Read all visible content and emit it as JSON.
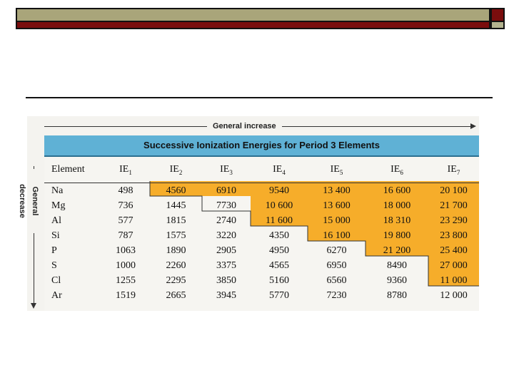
{
  "figure": {
    "general_increase": "General increase",
    "general_decrease": "General decrease",
    "table_title": "Successive Ionization Energies for Period 3 Elements",
    "columns": [
      "Element",
      "IE1",
      "IE2",
      "IE3",
      "IE4",
      "IE5",
      "IE6",
      "IE7"
    ],
    "rows": [
      {
        "element": "Na",
        "values": [
          "498",
          "4560",
          "6910",
          "9540",
          "13 400",
          "16 600",
          "20 100"
        ]
      },
      {
        "element": "Mg",
        "values": [
          "736",
          "1445",
          "7730",
          "10 600",
          "13 600",
          "18 000",
          "21 700"
        ]
      },
      {
        "element": "Al",
        "values": [
          "577",
          "1815",
          "2740",
          "11 600",
          "15 000",
          "18 310",
          "23 290"
        ]
      },
      {
        "element": "Si",
        "values": [
          "787",
          "1575",
          "3220",
          "4350",
          "16 100",
          "19 800",
          "23 800"
        ]
      },
      {
        "element": "P",
        "values": [
          "1063",
          "1890",
          "2905",
          "4950",
          "6270",
          "21 200",
          "25 400"
        ]
      },
      {
        "element": "S",
        "values": [
          "1000",
          "2260",
          "3375",
          "4565",
          "6950",
          "8490",
          "27 000"
        ]
      },
      {
        "element": "Cl",
        "values": [
          "1255",
          "2295",
          "3850",
          "5160",
          "6560",
          "9360",
          "11 000"
        ]
      },
      {
        "element": "Ar",
        "values": [
          "1519",
          "2665",
          "3945",
          "5770",
          "7230",
          "8780",
          "12 000"
        ]
      }
    ],
    "colors": {
      "highlight": "#f6ad2a",
      "title_band": "#5fb1d5",
      "header_olive": "#a9a57a",
      "header_maroon": "#7a0d0d"
    }
  }
}
